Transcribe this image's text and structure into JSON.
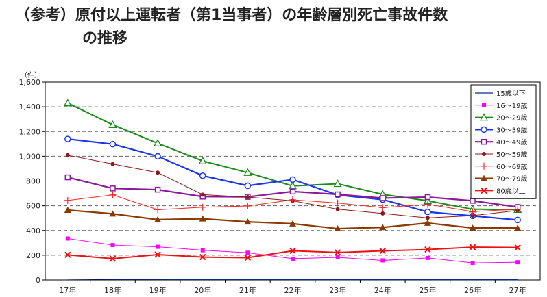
{
  "title_line1": "（参考）原付以上運転者（第1当事者）の年齢層別死亡事故件数",
  "title_line2": "の推移",
  "colors": {
    "s15": "#0a2a8a",
    "s16": "#ff00ff",
    "s20": "#1a8a1a",
    "s30": "#1a33ee",
    "s40": "#8a1a9a",
    "s50": "#8a1a1a",
    "s60": "#ff2222",
    "s70": "#8a3a00",
    "s80": "#ee1111"
  },
  "chart_data": {
    "type": "line",
    "ylabel": "（件）",
    "ylim": [
      0,
      1600
    ],
    "yticks": [
      "0",
      "200",
      "400",
      "600",
      "800",
      "1,000",
      "1,200",
      "1,400",
      "1,600"
    ],
    "grid": true,
    "legend": "top-right",
    "categories": [
      "17年",
      "18年",
      "19年",
      "20年",
      "21年",
      "22年",
      "23年",
      "24年",
      "25年",
      "26年",
      "27年"
    ],
    "series": [
      {
        "name": "15歳以下",
        "values": [
          8,
          5,
          4,
          3,
          3,
          3,
          2,
          2,
          2,
          2,
          2
        ]
      },
      {
        "name": "16～19歳",
        "values": [
          335,
          282,
          268,
          240,
          220,
          172,
          183,
          158,
          178,
          138,
          143
        ]
      },
      {
        "name": "20～29歳",
        "values": [
          1430,
          1255,
          1105,
          962,
          868,
          760,
          778,
          692,
          640,
          572,
          568
        ]
      },
      {
        "name": "30～39歳",
        "values": [
          1140,
          1098,
          1000,
          843,
          762,
          812,
          687,
          650,
          550,
          518,
          485
        ]
      },
      {
        "name": "40～49歳",
        "values": [
          830,
          740,
          730,
          674,
          672,
          715,
          692,
          662,
          670,
          640,
          590
        ]
      },
      {
        "name": "50～59歳",
        "values": [
          1008,
          938,
          868,
          690,
          670,
          640,
          572,
          538,
          502,
          520,
          562
        ]
      },
      {
        "name": "60～69歳",
        "values": [
          643,
          688,
          568,
          588,
          598,
          648,
          622,
          585,
          612,
          552,
          572
        ]
      },
      {
        "name": "70～79歳",
        "values": [
          565,
          535,
          488,
          495,
          470,
          455,
          415,
          425,
          460,
          420,
          420
        ]
      },
      {
        "name": "80歳以上",
        "values": [
          203,
          172,
          205,
          185,
          180,
          236,
          222,
          235,
          246,
          265,
          262
        ]
      }
    ]
  }
}
